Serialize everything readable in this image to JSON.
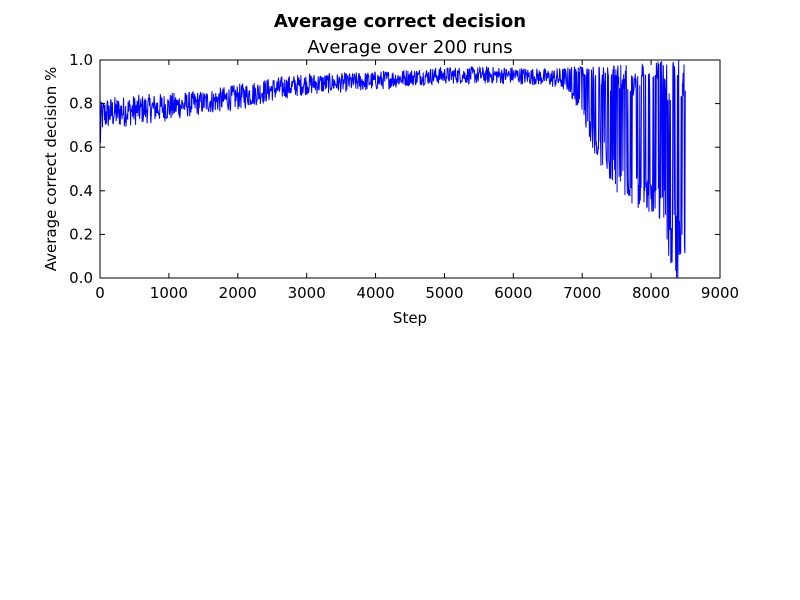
{
  "chart_data": {
    "type": "line",
    "suptitle": "Average correct decision",
    "title": "Average over 200 runs",
    "xlabel": "Step",
    "ylabel": "Average correct decision %",
    "xlim": [
      0,
      9000
    ],
    "ylim": [
      0.0,
      1.0
    ],
    "xticks": [
      0,
      1000,
      2000,
      3000,
      4000,
      5000,
      6000,
      7000,
      8000,
      9000
    ],
    "yticks": [
      0.0,
      0.2,
      0.4,
      0.6,
      0.8,
      1.0
    ],
    "xtick_labels": [
      "0",
      "1000",
      "2000",
      "3000",
      "4000",
      "5000",
      "6000",
      "7000",
      "8000",
      "9000"
    ],
    "ytick_labels": [
      "0.0",
      "0.2",
      "0.4",
      "0.6",
      "0.8",
      "1.0"
    ],
    "grid": false,
    "series": [
      {
        "color": "#0000ff",
        "x_range": [
          0,
          8500
        ],
        "envelope": {
          "step": [
            0,
            20,
            100,
            500,
            1000,
            1500,
            2000,
            2500,
            3000,
            3500,
            4000,
            4500,
            5000,
            5500,
            6000,
            6500,
            6800,
            7000,
            7200,
            7400,
            7600,
            7800,
            8000,
            8200,
            8300,
            8400,
            8500
          ],
          "mean": [
            0.62,
            0.74,
            0.75,
            0.77,
            0.79,
            0.81,
            0.83,
            0.86,
            0.88,
            0.89,
            0.9,
            0.91,
            0.92,
            0.92,
            0.92,
            0.91,
            0.9,
            0.86,
            0.78,
            0.67,
            0.6,
            0.58,
            0.58,
            0.52,
            0.5,
            0.5,
            0.5
          ],
          "low": [
            0.52,
            0.66,
            0.68,
            0.7,
            0.72,
            0.75,
            0.77,
            0.81,
            0.84,
            0.85,
            0.86,
            0.88,
            0.89,
            0.89,
            0.89,
            0.88,
            0.85,
            0.74,
            0.55,
            0.44,
            0.35,
            0.32,
            0.3,
            0.22,
            0.0,
            0.0,
            0.0
          ],
          "high": [
            0.72,
            0.82,
            0.83,
            0.84,
            0.85,
            0.86,
            0.89,
            0.92,
            0.94,
            0.94,
            0.95,
            0.96,
            0.97,
            0.97,
            0.97,
            0.96,
            0.97,
            0.97,
            0.97,
            0.98,
            0.98,
            0.98,
            0.99,
            1.0,
            1.0,
            1.0,
            1.0
          ]
        }
      }
    ]
  }
}
